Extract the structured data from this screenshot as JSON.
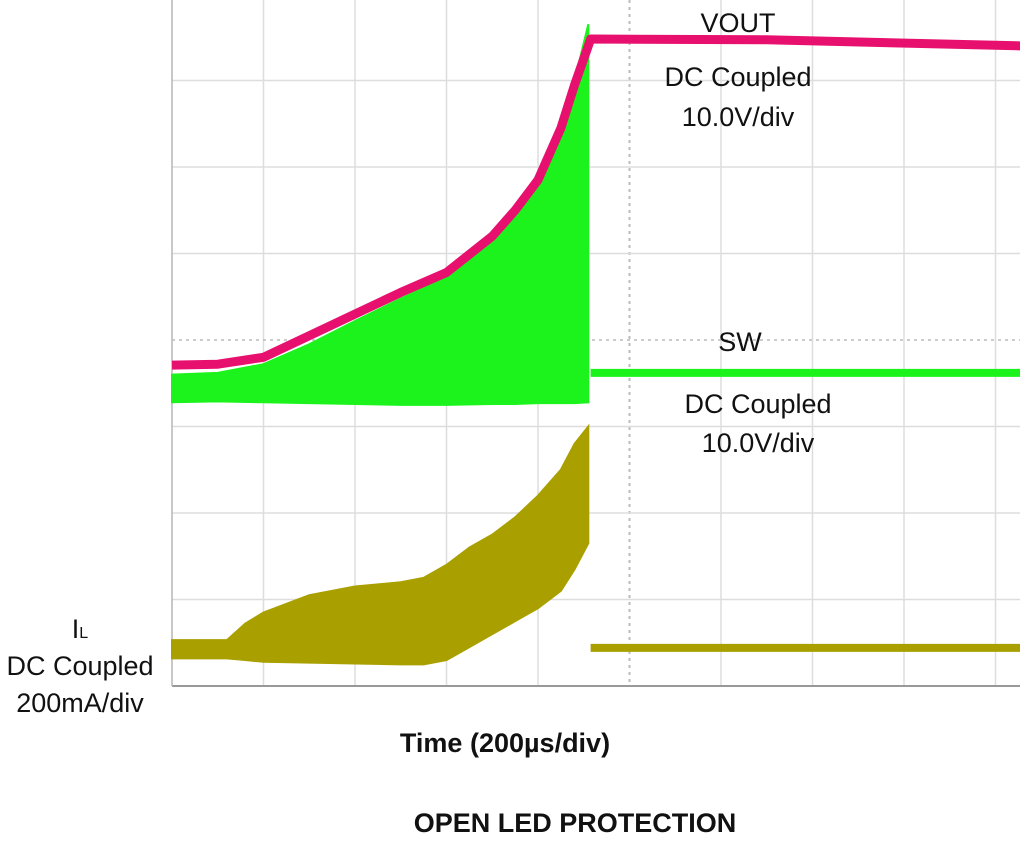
{
  "chart_data": {
    "type": "line",
    "title": "OPEN LED PROTECTION",
    "xlabel": "Time (200µs/div)",
    "x_units": "µs",
    "y_units": "div",
    "xlim": [
      0,
      1860
    ],
    "ylim": [
      0,
      8
    ],
    "grid": true,
    "colors": {
      "vout": "#e8106e",
      "sw": "#1cf21c",
      "il": "#a9a000"
    },
    "channels": [
      {
        "name": "VOUT",
        "coupling": "DC Coupled",
        "scale": "10.0V/div",
        "kind": "line",
        "x": [
          0,
          100,
          200,
          300,
          400,
          500,
          600,
          700,
          750,
          800,
          850,
          880,
          910,
          915,
          1300,
          1860
        ],
        "y": [
          3.71,
          3.72,
          3.8,
          4.05,
          4.3,
          4.55,
          4.78,
          5.2,
          5.5,
          5.85,
          6.45,
          6.95,
          7.4,
          7.48,
          7.47,
          7.4
        ]
      },
      {
        "name": "SW",
        "coupling": "DC Coupled",
        "scale": "10.0V/div",
        "kind": "envelope",
        "x": [
          0,
          100,
          200,
          300,
          400,
          500,
          600,
          700,
          750,
          800,
          850,
          880,
          910
        ],
        "top": [
          3.6,
          3.62,
          3.72,
          3.95,
          4.22,
          4.48,
          4.72,
          5.15,
          5.47,
          5.85,
          6.5,
          7.0,
          7.65
        ],
        "bottom": [
          3.28,
          3.29,
          3.28,
          3.27,
          3.26,
          3.25,
          3.25,
          3.26,
          3.26,
          3.27,
          3.27,
          3.27,
          3.28
        ],
        "after_x": [
          915,
          1860
        ],
        "after_y": [
          3.62,
          3.62
        ]
      },
      {
        "name": "IL",
        "coupling": "DC Coupled",
        "scale": "200mA/div",
        "kind": "envelope",
        "x": [
          0,
          120,
          160,
          200,
          300,
          400,
          500,
          550,
          600,
          650,
          700,
          750,
          800,
          850,
          880,
          910
        ],
        "top": [
          0.53,
          0.53,
          0.72,
          0.85,
          1.05,
          1.15,
          1.2,
          1.25,
          1.4,
          1.6,
          1.75,
          1.95,
          2.2,
          2.5,
          2.8,
          3.0
        ],
        "bottom": [
          0.32,
          0.32,
          0.3,
          0.28,
          0.27,
          0.26,
          0.25,
          0.25,
          0.3,
          0.45,
          0.6,
          0.75,
          0.9,
          1.1,
          1.35,
          1.65
        ],
        "after_x": [
          915,
          1860
        ],
        "after_y": [
          0.44,
          0.44
        ]
      }
    ]
  },
  "labels": {
    "vout_name": "VOUT",
    "vout_coupling": "DC Coupled",
    "vout_scale": "10.0V/div",
    "sw_name": "SW",
    "sw_coupling": "DC Coupled",
    "sw_scale": "10.0V/div",
    "il_name": "I",
    "il_sub": "L",
    "il_coupling": "DC Coupled",
    "il_scale": "200mA/div",
    "xlabel": "Time (200µs/div)",
    "title": "OPEN LED PROTECTION"
  }
}
